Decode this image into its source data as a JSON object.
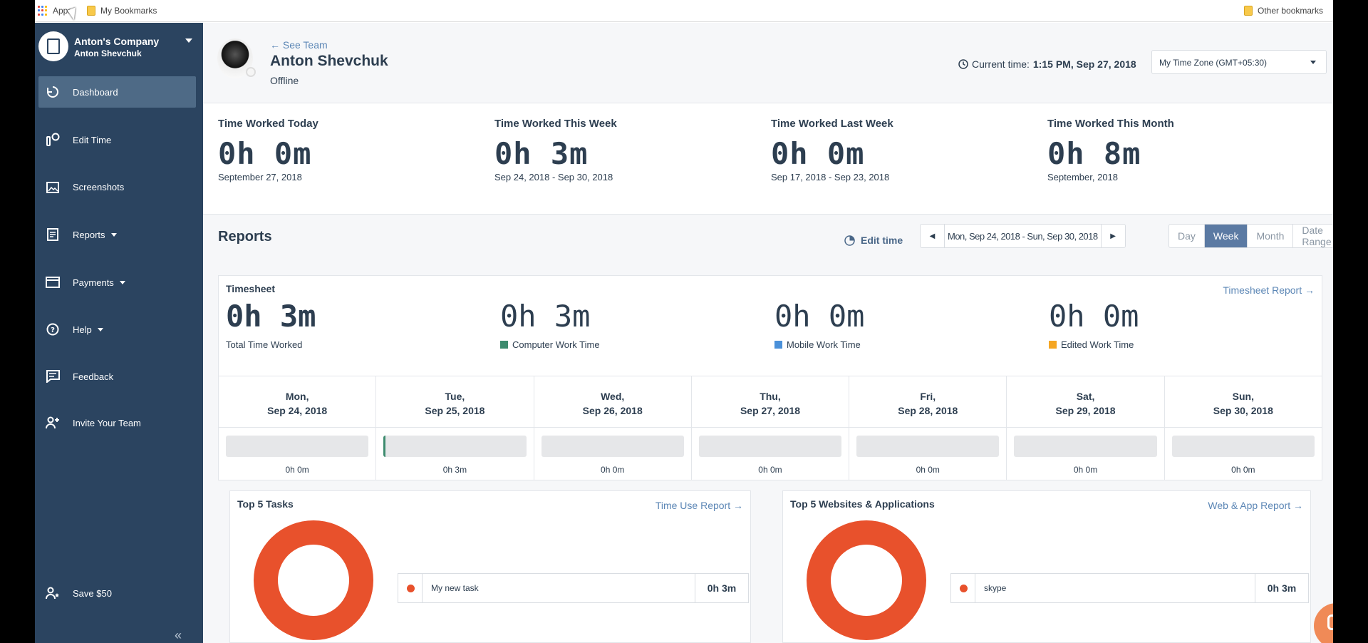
{
  "bookmarks": {
    "apps_label": "Apps",
    "my_bookmarks": "My Bookmarks",
    "other_bookmarks": "Other bookmarks"
  },
  "sidebar": {
    "company": "Anton's Company",
    "user": "Anton Shevchuk",
    "items": [
      {
        "label": "Dashboard",
        "icon": "dashboard-icon"
      },
      {
        "label": "Edit Time",
        "icon": "edit-time-icon"
      },
      {
        "label": "Screenshots",
        "icon": "screenshots-icon"
      },
      {
        "label": "Reports",
        "icon": "reports-icon"
      },
      {
        "label": "Payments",
        "icon": "payments-icon"
      },
      {
        "label": "Help",
        "icon": "help-icon"
      },
      {
        "label": "Feedback",
        "icon": "feedback-icon"
      },
      {
        "label": "Invite Your Team",
        "icon": "invite-icon"
      },
      {
        "label": "Save $50",
        "icon": "save-icon"
      }
    ],
    "collapse": "«"
  },
  "header": {
    "see_team": "← See Team",
    "name": "Anton Shevchuk",
    "status": "Offline",
    "current_time_label": "Current time:",
    "current_time_value": "1:15 PM, Sep 27, 2018",
    "timezone": "My Time Zone (GMT+05:30)"
  },
  "stats": [
    {
      "label": "Time Worked Today",
      "value": "0h 0m",
      "sub": "September 27, 2018"
    },
    {
      "label": "Time Worked This Week",
      "value": "0h 3m",
      "sub": "Sep 24, 2018 - Sep 30, 2018"
    },
    {
      "label": "Time Worked Last Week",
      "value": "0h 0m",
      "sub": "Sep 17, 2018 - Sep 23, 2018"
    },
    {
      "label": "Time Worked This Month",
      "value": "0h 8m",
      "sub": "September, 2018"
    }
  ],
  "reports": {
    "title": "Reports",
    "edit_time": "Edit time",
    "range": "Mon, Sep 24, 2018 - Sun, Sep 30, 2018",
    "tabs": [
      "Day",
      "Week",
      "Month",
      "Date Range"
    ],
    "active_tab": "Week"
  },
  "timesheet": {
    "title": "Timesheet",
    "report_link": "Timesheet Report →",
    "stats": [
      {
        "value": "0h 3m",
        "label": "Total Time Worked",
        "color": ""
      },
      {
        "value": "0h 3m",
        "label": "Computer Work Time",
        "color": "#3d8b6e"
      },
      {
        "value": "0h 0m",
        "label": "Mobile Work Time",
        "color": "#4a90d9"
      },
      {
        "value": "0h 0m",
        "label": "Edited Work Time",
        "color": "#f5a623"
      }
    ],
    "days": [
      {
        "dow": "Mon,",
        "date": "Sep 24, 2018",
        "amount": "0h 0m",
        "fraction": 0
      },
      {
        "dow": "Tue,",
        "date": "Sep 25, 2018",
        "amount": "0h 3m",
        "fraction": 0.015
      },
      {
        "dow": "Wed,",
        "date": "Sep 26, 2018",
        "amount": "0h 0m",
        "fraction": 0
      },
      {
        "dow": "Thu,",
        "date": "Sep 27, 2018",
        "amount": "0h 0m",
        "fraction": 0
      },
      {
        "dow": "Fri,",
        "date": "Sep 28, 2018",
        "amount": "0h 0m",
        "fraction": 0
      },
      {
        "dow": "Sat,",
        "date": "Sep 29, 2018",
        "amount": "0h 0m",
        "fraction": 0
      },
      {
        "dow": "Sun,",
        "date": "Sep 30, 2018",
        "amount": "0h 0m",
        "fraction": 0
      }
    ]
  },
  "tasks_card": {
    "title": "Top 5 Tasks",
    "link": "Time Use Report →",
    "item": {
      "name": "My new task",
      "time": "0h 3m",
      "color": "#e8512c"
    }
  },
  "apps_card": {
    "title": "Top 5 Websites & Applications",
    "link": "Web & App Report →",
    "item": {
      "name": "skype",
      "time": "0h 3m",
      "color": "#e8512c"
    }
  },
  "colors": {
    "sidebar": "#2b4460",
    "accent": "#5b7aa3",
    "donut": "#e8512c"
  }
}
